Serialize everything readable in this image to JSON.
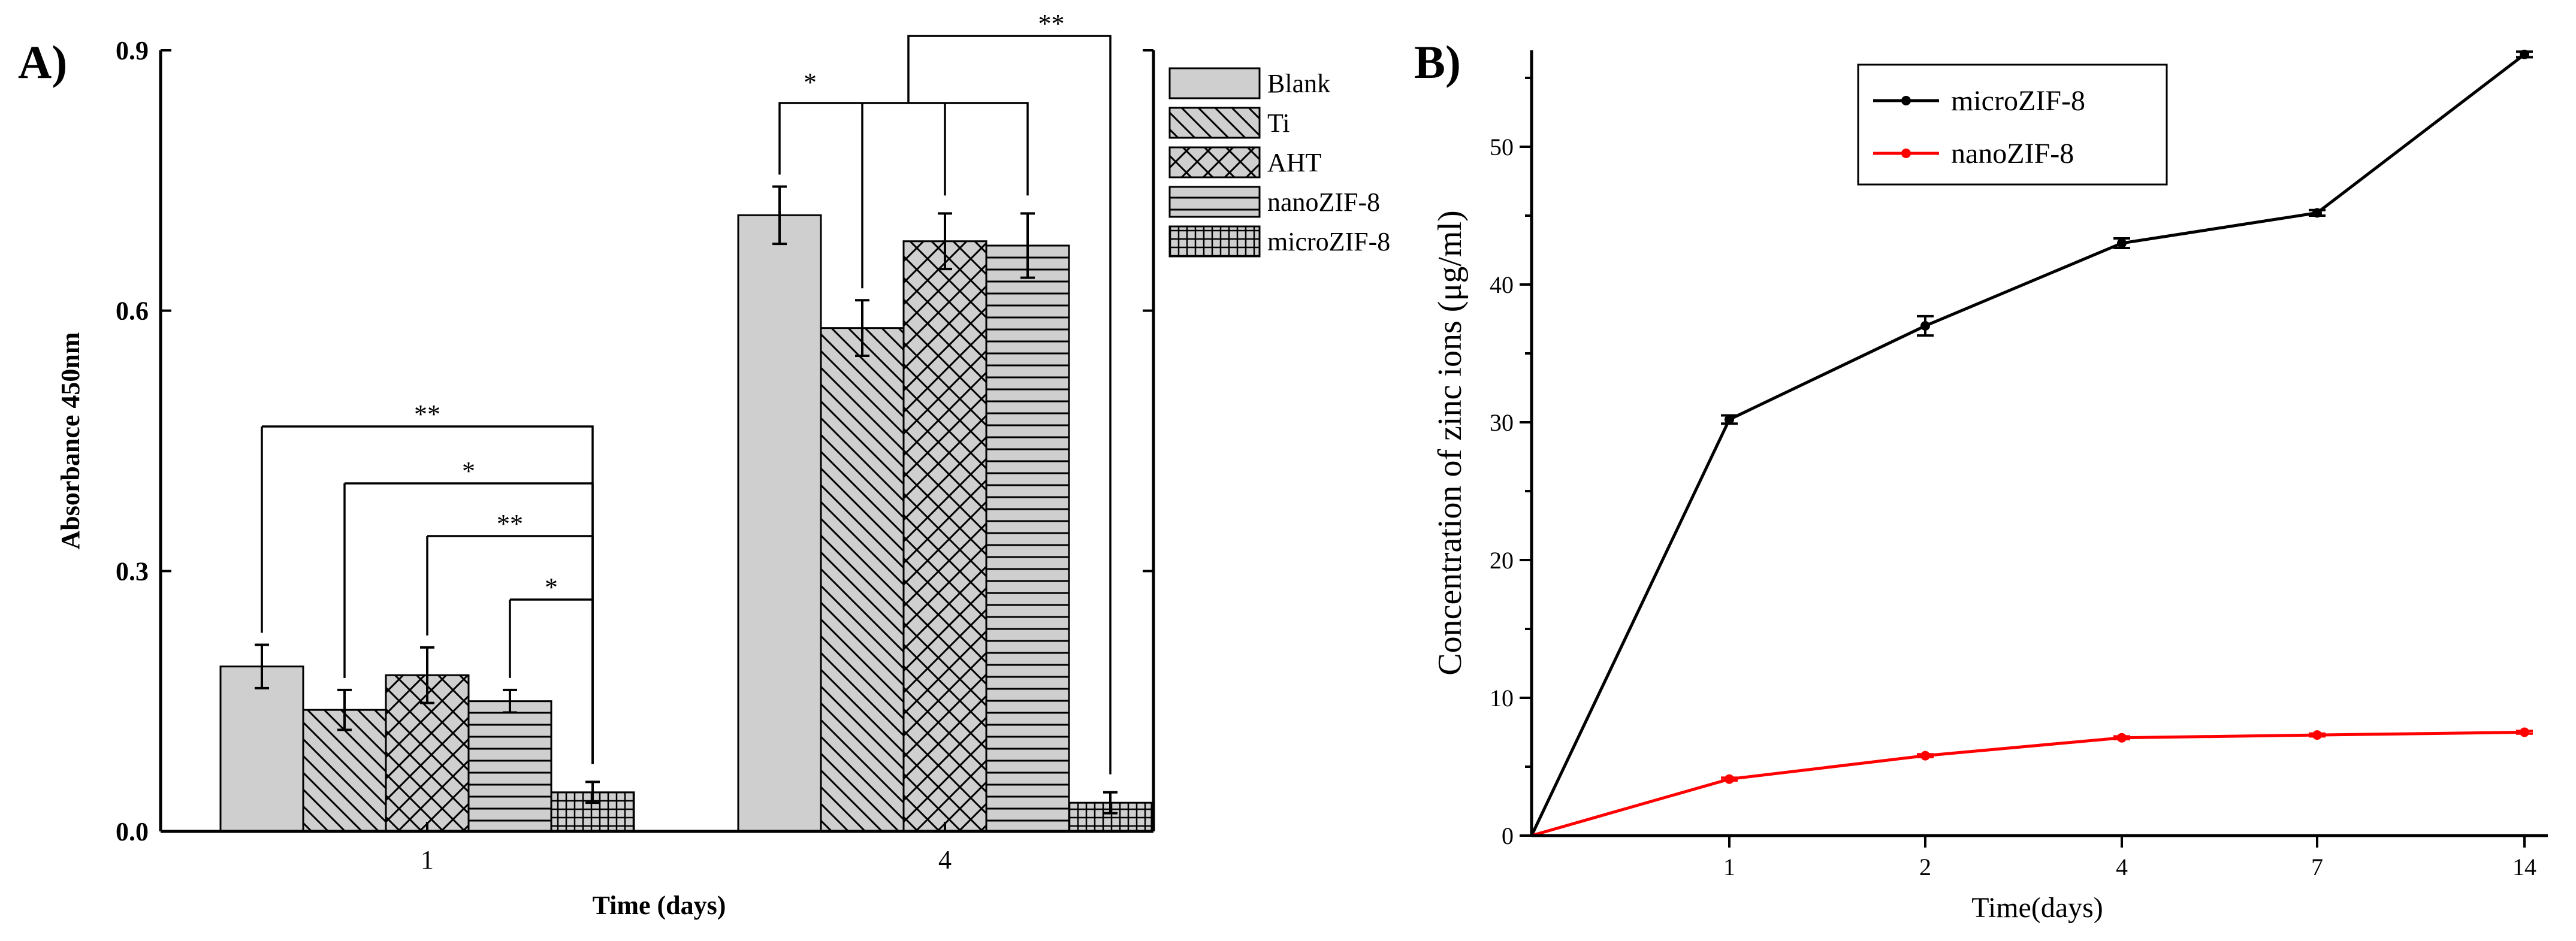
{
  "figure": {
    "panel_labels": [
      "A)",
      "B)"
    ]
  },
  "chart_data": [
    {
      "type": "bar",
      "panel": "A)",
      "title": "",
      "xlabel": "Time (days)",
      "ylabel": "Absorbance 450nm",
      "categories": [
        "1",
        "4"
      ],
      "ylim": [
        0,
        0.9
      ],
      "yticks": [
        "0.0",
        "0.3",
        "0.6",
        "0.9"
      ],
      "legend_position": "top-right",
      "series": [
        {
          "name": "Blank",
          "pattern": "solid",
          "values": [
            0.19,
            0.71
          ],
          "errors": [
            0.025,
            0.033
          ]
        },
        {
          "name": "Ti",
          "pattern": "diagonal",
          "values": [
            0.14,
            0.58
          ],
          "errors": [
            0.023,
            0.032
          ]
        },
        {
          "name": "AHT",
          "pattern": "crosshatch",
          "values": [
            0.18,
            0.68
          ],
          "errors": [
            0.032,
            0.032
          ]
        },
        {
          "name": "nanoZIF-8",
          "pattern": "horizontal",
          "values": [
            0.15,
            0.675
          ],
          "errors": [
            0.013,
            0.037
          ]
        },
        {
          "name": "microZIF-8",
          "pattern": "grid",
          "values": [
            0.045,
            0.033
          ],
          "errors": [
            0.012,
            0.012
          ]
        }
      ],
      "significance": [
        {
          "label": "**",
          "group": "1",
          "from": "Blank",
          "to": "microZIF-8"
        },
        {
          "label": "*",
          "group": "1",
          "from": "Ti",
          "to": "microZIF-8"
        },
        {
          "label": "**",
          "group": "1",
          "from": "AHT",
          "to": "microZIF-8"
        },
        {
          "label": "*",
          "group": "1",
          "from": "nanoZIF-8",
          "to": "microZIF-8"
        },
        {
          "label": "*",
          "group": "4",
          "from": "Blank",
          "to": [
            "Ti",
            "AHT",
            "nanoZIF-8"
          ]
        },
        {
          "label": "**",
          "group": "4",
          "from": [
            "Blank",
            "Ti",
            "AHT",
            "nanoZIF-8"
          ],
          "to": "microZIF-8"
        }
      ]
    },
    {
      "type": "line",
      "panel": "B)",
      "title": "",
      "xlabel": "Time(days)",
      "ylabel": "Concentration of zinc ions (μg/ml)",
      "x": [
        "0",
        "1",
        "2",
        "4",
        "7",
        "14"
      ],
      "xticks": [
        "1",
        "2",
        "4",
        "7",
        "14"
      ],
      "ylim": [
        0,
        57
      ],
      "yticks": [
        "0",
        "10",
        "20",
        "30",
        "40",
        "50"
      ],
      "legend_position": "top-left",
      "series": [
        {
          "name": "microZIF-8",
          "color": "#000000",
          "values": [
            0,
            30.2,
            37.0,
            43.0,
            45.2,
            56.7
          ],
          "errors": [
            0,
            0.3,
            0.7,
            0.35,
            0.2,
            0.2
          ]
        },
        {
          "name": "nanoZIF-8",
          "color": "#ff0000",
          "values": [
            0,
            4.1,
            5.8,
            7.1,
            7.3,
            7.5
          ],
          "errors": [
            0,
            0.1,
            0.1,
            0.1,
            0.1,
            0.1
          ]
        }
      ]
    }
  ]
}
